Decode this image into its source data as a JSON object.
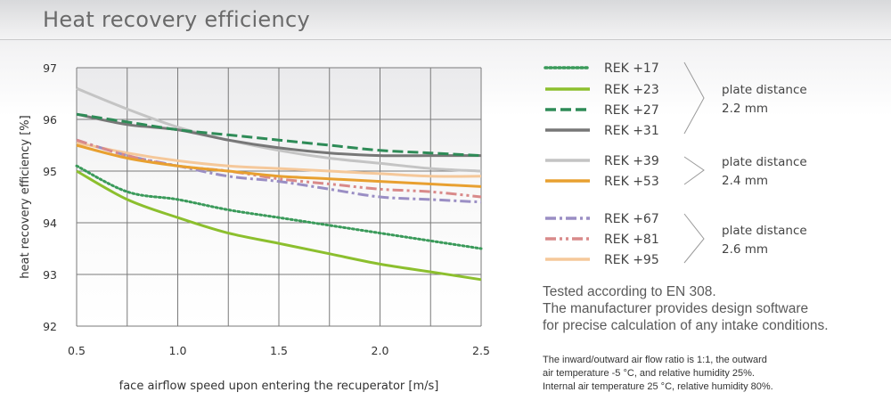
{
  "title": "Heat recovery efficiency",
  "chart_data": {
    "type": "line",
    "xlabel": "face airflow speed upon entering the recuperator [m/s]",
    "ylabel": "heat recovery efficiency [%]",
    "xlim": [
      0.5,
      2.5
    ],
    "ylim": [
      92,
      97
    ],
    "x_ticks": [
      "0.5",
      "1.0",
      "1.5",
      "2.0",
      "2.5"
    ],
    "y_ticks": [
      "92",
      "93",
      "94",
      "95",
      "96",
      "97"
    ],
    "grid": true,
    "x": [
      0.5,
      0.75,
      1.0,
      1.25,
      1.5,
      1.75,
      2.0,
      2.25,
      2.5
    ],
    "series": [
      {
        "name": "REK +17",
        "style": "dotted",
        "color": "#3a9a5a",
        "values": [
          95.1,
          94.6,
          94.45,
          94.25,
          94.1,
          93.95,
          93.8,
          93.65,
          93.5
        ]
      },
      {
        "name": "REK +23",
        "style": "solid",
        "color": "#8cbf2e",
        "values": [
          95.0,
          94.45,
          94.1,
          93.8,
          93.6,
          93.4,
          93.2,
          93.05,
          92.9
        ]
      },
      {
        "name": "REK +27",
        "style": "dashed",
        "color": "#2e8b57",
        "values": [
          96.1,
          95.95,
          95.8,
          95.7,
          95.6,
          95.5,
          95.4,
          95.35,
          95.3
        ]
      },
      {
        "name": "REK +31",
        "style": "solid",
        "color": "#777777",
        "values": [
          96.1,
          95.9,
          95.8,
          95.6,
          95.45,
          95.35,
          95.3,
          95.3,
          95.3
        ]
      },
      {
        "name": "REK +39",
        "style": "solid",
        "color": "#c4c4c4",
        "values": [
          96.6,
          96.2,
          95.85,
          95.6,
          95.4,
          95.25,
          95.15,
          95.05,
          95.0
        ]
      },
      {
        "name": "REK +53",
        "style": "solid",
        "color": "#e8a030",
        "values": [
          95.5,
          95.25,
          95.1,
          95.0,
          94.9,
          94.85,
          94.8,
          94.75,
          94.7
        ]
      },
      {
        "name": "REK +67",
        "style": "dashdot",
        "color": "#9a8ec4",
        "values": [
          95.6,
          95.3,
          95.1,
          94.9,
          94.8,
          94.65,
          94.5,
          94.45,
          94.4
        ]
      },
      {
        "name": "REK +81",
        "style": "dashdotdot",
        "color": "#d98a8a",
        "values": [
          95.6,
          95.3,
          95.1,
          95.0,
          94.85,
          94.75,
          94.65,
          94.6,
          94.5
        ]
      },
      {
        "name": "REK +95",
        "style": "solid",
        "color": "#f5c89a",
        "values": [
          95.55,
          95.35,
          95.2,
          95.1,
          95.05,
          95.0,
          94.95,
          94.9,
          94.9
        ]
      }
    ]
  },
  "legend": {
    "groups": [
      {
        "label_line1": "plate distance",
        "label_line2": "2.2 mm"
      },
      {
        "label_line1": "plate distance",
        "label_line2": "2.4 mm"
      },
      {
        "label_line1": "plate distance",
        "label_line2": "2.6 mm"
      }
    ]
  },
  "notes": {
    "main": [
      "Tested according to EN 308.",
      "The manufacturer provides design software",
      "for precise calculation of any intake conditions."
    ],
    "small": [
      "The inward/outward air flow ratio is 1:1, the outward",
      "air temperature -5 °C, and relative humidity 25%.",
      "Internal air temperature 25 °C, relative humidity 80%."
    ]
  }
}
